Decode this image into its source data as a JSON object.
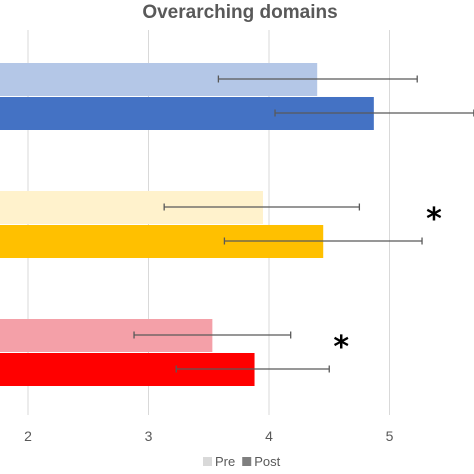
{
  "chart_data": {
    "type": "bar",
    "orientation": "horizontal",
    "title": "Overarching domains",
    "xlabel": "",
    "ylabel": "",
    "xlim": [
      1.77,
      5.7
    ],
    "xticks": [
      2,
      3,
      4,
      5
    ],
    "grid": true,
    "legend": {
      "position": "bottom-right",
      "entries": [
        {
          "label": "Pre",
          "color": "#d9d9d9"
        },
        {
          "label": "Post",
          "color": "#7f7f7f"
        }
      ]
    },
    "groups": [
      {
        "pre": {
          "value": 4.4,
          "error_low": 3.58,
          "error_high": 5.23,
          "color": "#b4c7e7"
        },
        "post": {
          "value": 4.87,
          "error_low": 4.05,
          "error_high": 5.7,
          "color": "#4472c4"
        },
        "significant": false
      },
      {
        "pre": {
          "value": 3.95,
          "error_low": 3.13,
          "error_high": 4.75,
          "color": "#fff2cc"
        },
        "post": {
          "value": 4.45,
          "error_low": 3.63,
          "error_high": 5.27,
          "color": "#ffc000"
        },
        "significant": true
      },
      {
        "pre": {
          "value": 3.53,
          "error_low": 2.88,
          "error_high": 4.18,
          "color": "#f4a0a8"
        },
        "post": {
          "value": 3.88,
          "error_low": 3.23,
          "error_high": 4.5,
          "color": "#ff0000"
        },
        "significant": true
      }
    ],
    "annotation_symbol": "*"
  }
}
